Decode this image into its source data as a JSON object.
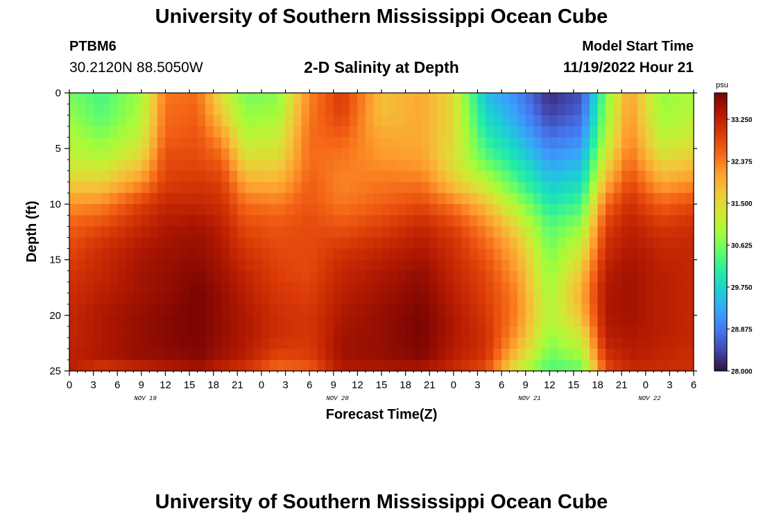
{
  "header": {
    "title_top": "University of Southern Mississippi Ocean Cube",
    "title_bottom": "University of Southern Mississippi Ocean Cube",
    "station_id": "PTBM6",
    "station_coords": "30.2120N  88.5050W",
    "plot_title": "2-D Salinity at Depth",
    "model_start_label": "Model Start Time",
    "model_start_value": "11/19/2022 Hour 21"
  },
  "chart_data": {
    "type": "heatmap",
    "title": "2-D Salinity at Depth",
    "xlabel": "Forecast Time(Z)",
    "ylabel": "Depth (ft)",
    "x_tick_labels": [
      "0",
      "3",
      "6",
      "9",
      "12",
      "15",
      "18",
      "21",
      "0",
      "3",
      "6",
      "9",
      "12",
      "15",
      "18",
      "21",
      "0",
      "3",
      "6",
      "9",
      "12",
      "15",
      "18",
      "21",
      "0",
      "3",
      "6"
    ],
    "x_hours": [
      0,
      3,
      6,
      9,
      12,
      15,
      18,
      21,
      24,
      27,
      30,
      33,
      36,
      39,
      42,
      45,
      48,
      51,
      54,
      57,
      60,
      63,
      66,
      69,
      72,
      75,
      78
    ],
    "xlim_hours": [
      0,
      78
    ],
    "day_labels": [
      {
        "label": "NOV 19",
        "hour": 9.5
      },
      {
        "label": "NOV 20",
        "hour": 33.5
      },
      {
        "label": "NOV 21",
        "hour": 57.5
      },
      {
        "label": "NOV 22",
        "hour": 72.5
      }
    ],
    "y_tick_labels": [
      "0",
      "5",
      "10",
      "15",
      "20",
      "25"
    ],
    "y_ticks": [
      0,
      5,
      10,
      15,
      20,
      25
    ],
    "ylim": [
      0,
      25
    ],
    "y_inverted": true,
    "colorbar": {
      "unit": "psu",
      "min": 28.0,
      "max": 33.8,
      "tick_labels": [
        "33.250",
        "32.375",
        "31.500",
        "30.625",
        "29.750",
        "28.875",
        "28.000"
      ],
      "tick_values": [
        33.25,
        32.375,
        31.5,
        30.625,
        29.75,
        28.875,
        28.0
      ],
      "colors": [
        "#30123b",
        "#4145ab",
        "#4675ed",
        "#39a2fc",
        "#1bcfd4",
        "#24eca6",
        "#61fc6c",
        "#a4fc3b",
        "#d1e834",
        "#f3c63a",
        "#fe9b2d",
        "#f36315",
        "#d93806",
        "#b11901",
        "#7a0402"
      ]
    },
    "profiles": [
      {
        "hour": 0,
        "values": [
          30.6,
          30.8,
          31.0,
          31.2,
          31.6,
          32.2,
          32.6,
          32.8,
          33.0,
          33.1,
          33.2,
          33.2,
          33.3,
          33.3
        ]
      },
      {
        "hour": 4,
        "values": [
          30.3,
          30.4,
          30.7,
          31.1,
          31.6,
          32.3,
          32.8,
          33.1,
          33.2,
          33.3,
          33.4,
          33.4,
          33.4,
          32.8
        ]
      },
      {
        "hour": 9,
        "values": [
          30.9,
          31.0,
          31.2,
          31.6,
          32.2,
          32.9,
          33.2,
          33.4,
          33.5,
          33.5,
          33.6,
          33.6,
          33.6,
          33.0
        ]
      },
      {
        "hour": 12,
        "values": [
          32.4,
          32.5,
          32.6,
          32.8,
          32.9,
          33.2,
          33.4,
          33.5,
          33.6,
          33.6,
          33.7,
          33.7,
          33.6,
          33.2
        ]
      },
      {
        "hour": 16,
        "values": [
          32.5,
          32.6,
          32.7,
          32.8,
          33.0,
          33.2,
          33.5,
          33.6,
          33.7,
          33.8,
          33.8,
          33.8,
          33.7,
          33.4
        ]
      },
      {
        "hour": 19,
        "values": [
          31.4,
          31.7,
          32.2,
          32.6,
          32.9,
          33.1,
          33.3,
          33.4,
          33.5,
          33.6,
          33.6,
          33.6,
          33.5,
          33.1
        ]
      },
      {
        "hour": 22,
        "values": [
          30.6,
          30.8,
          31.1,
          31.5,
          32.0,
          32.5,
          32.8,
          33.0,
          33.2,
          33.3,
          33.4,
          33.4,
          33.3,
          32.9
        ]
      },
      {
        "hour": 26,
        "values": [
          30.7,
          30.9,
          31.2,
          31.5,
          31.9,
          32.4,
          32.7,
          32.8,
          32.9,
          33.0,
          33.1,
          33.1,
          32.8,
          32.4
        ]
      },
      {
        "hour": 30,
        "values": [
          32.3,
          32.4,
          32.5,
          32.5,
          32.6,
          32.7,
          32.8,
          32.8,
          32.8,
          32.9,
          33.0,
          33.0,
          32.9,
          32.5
        ]
      },
      {
        "hour": 34,
        "values": [
          33.0,
          32.9,
          32.6,
          32.4,
          32.3,
          32.4,
          32.7,
          33.0,
          33.2,
          33.3,
          33.4,
          33.5,
          33.5,
          33.3
        ]
      },
      {
        "hour": 39,
        "values": [
          31.8,
          31.8,
          32.0,
          32.2,
          32.4,
          32.6,
          32.9,
          33.2,
          33.4,
          33.5,
          33.6,
          33.6,
          33.6,
          33.3
        ]
      },
      {
        "hour": 44,
        "values": [
          32.0,
          32.0,
          32.0,
          32.1,
          32.4,
          32.8,
          33.2,
          33.4,
          33.6,
          33.7,
          33.8,
          33.8,
          33.7,
          33.3
        ]
      },
      {
        "hour": 48,
        "values": [
          31.5,
          31.5,
          31.5,
          31.4,
          31.7,
          32.4,
          32.9,
          33.1,
          33.2,
          33.3,
          33.4,
          33.4,
          33.3,
          33.1
        ]
      },
      {
        "hour": 52,
        "values": [
          29.5,
          29.8,
          30.1,
          30.5,
          31.1,
          31.8,
          32.3,
          32.6,
          32.8,
          32.9,
          33.0,
          33.1,
          33.0,
          32.7
        ]
      },
      {
        "hour": 56,
        "values": [
          29.0,
          29.2,
          29.5,
          29.9,
          30.3,
          30.9,
          31.5,
          31.9,
          32.1,
          32.3,
          32.3,
          32.1,
          31.6,
          31.2
        ]
      },
      {
        "hour": 60,
        "values": [
          28.2,
          28.4,
          28.8,
          29.2,
          29.6,
          30.0,
          30.4,
          30.6,
          30.8,
          30.9,
          31.0,
          30.8,
          30.5,
          30.3
        ]
      },
      {
        "hour": 64,
        "values": [
          28.5,
          28.7,
          29.0,
          29.4,
          29.8,
          30.3,
          30.8,
          31.3,
          31.7,
          32.0,
          31.8,
          31.3,
          30.8,
          30.5
        ]
      },
      {
        "hour": 67,
        "values": [
          30.6,
          30.8,
          31.0,
          31.4,
          31.9,
          32.5,
          32.9,
          33.1,
          33.3,
          33.4,
          33.4,
          33.3,
          33.0,
          32.7
        ]
      },
      {
        "hour": 70,
        "values": [
          32.1,
          32.2,
          32.3,
          32.5,
          32.8,
          33.1,
          33.3,
          33.4,
          33.5,
          33.5,
          33.5,
          33.4,
          33.3,
          33.1
        ]
      },
      {
        "hour": 74,
        "values": [
          30.8,
          30.9,
          31.1,
          31.5,
          32.0,
          32.6,
          33.0,
          33.2,
          33.3,
          33.3,
          33.3,
          33.3,
          33.2,
          33.1
        ]
      },
      {
        "hour": 78,
        "values": [
          30.9,
          31.1,
          31.3,
          31.7,
          32.2,
          32.8,
          33.1,
          33.2,
          33.2,
          33.2,
          33.2,
          33.2,
          33.1,
          33.1
        ]
      }
    ],
    "profile_depths": [
      0,
      2,
      4,
      6,
      8,
      10,
      12,
      14,
      16,
      18,
      20,
      22,
      24,
      25
    ]
  }
}
